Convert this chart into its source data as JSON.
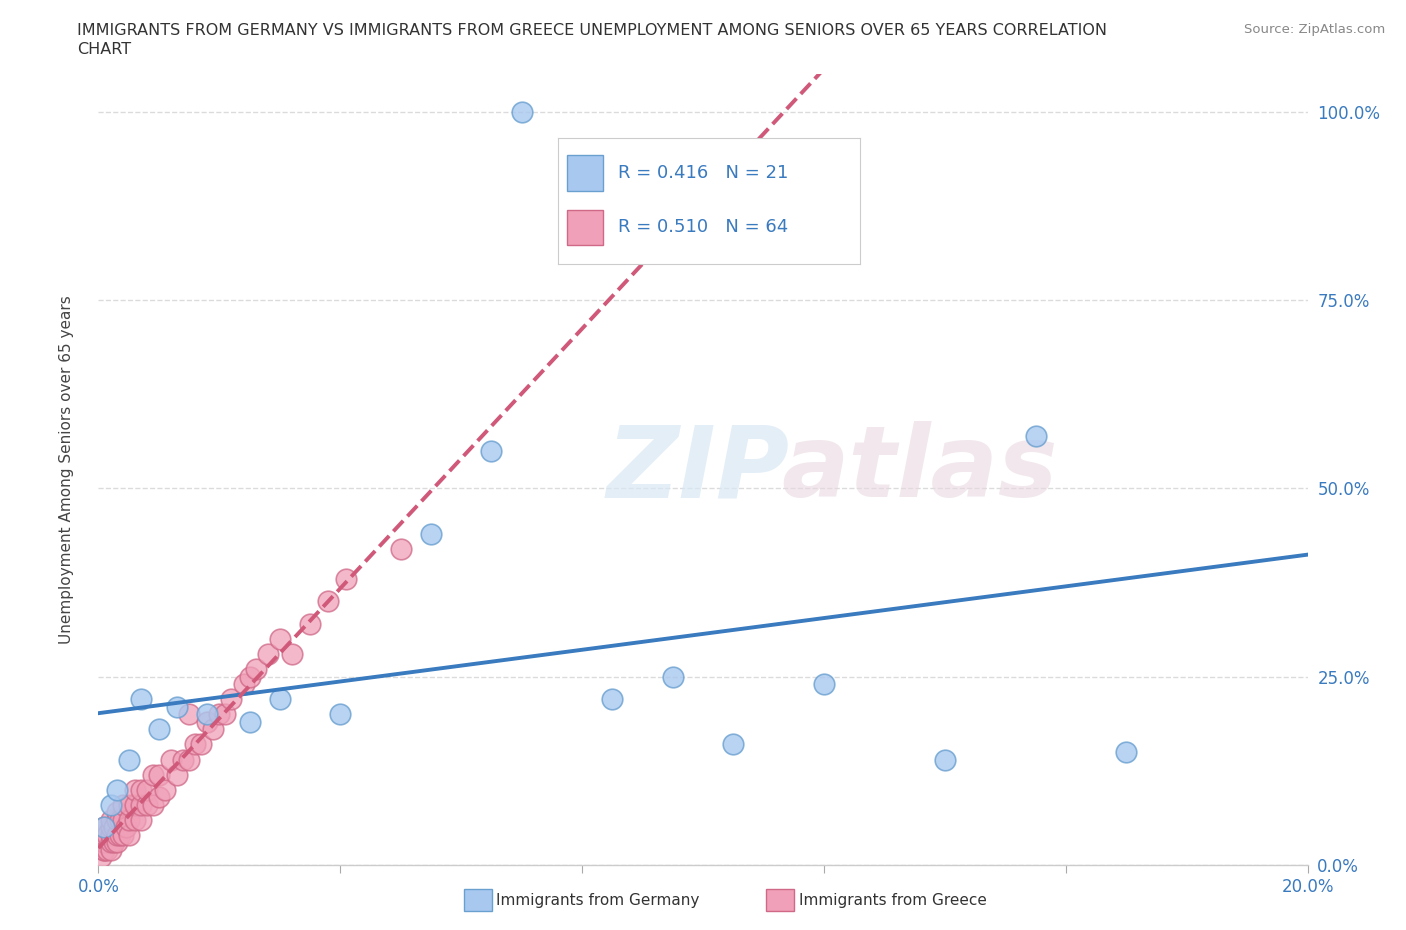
{
  "title_line1": "IMMIGRANTS FROM GERMANY VS IMMIGRANTS FROM GREECE UNEMPLOYMENT AMONG SENIORS OVER 65 YEARS CORRELATION",
  "title_line2": "CHART",
  "source_text": "Source: ZipAtlas.com",
  "ylabel": "Unemployment Among Seniors over 65 years",
  "xlim": [
    0.0,
    0.2
  ],
  "ylim": [
    0.0,
    1.05
  ],
  "xtick_positions": [
    0.0,
    0.04,
    0.08,
    0.12,
    0.16,
    0.2
  ],
  "xtick_labels": [
    "0.0%",
    "",
    "",
    "",
    "",
    "20.0%"
  ],
  "ytick_labels": [
    "0.0%",
    "25.0%",
    "50.0%",
    "75.0%",
    "100.0%"
  ],
  "yticks": [
    0.0,
    0.25,
    0.5,
    0.75,
    1.0
  ],
  "germany_color": "#a8c8f0",
  "greece_color": "#f0a0b8",
  "germany_edge": "#6aa0d0",
  "greece_edge": "#d06888",
  "trend_germany_color": "#3a7abf",
  "trend_greece_color": "#d05878",
  "R_germany": 0.416,
  "N_germany": 21,
  "R_greece": 0.51,
  "N_greece": 64,
  "germany_x": [
    0.001,
    0.002,
    0.003,
    0.005,
    0.007,
    0.01,
    0.013,
    0.018,
    0.025,
    0.03,
    0.04,
    0.055,
    0.065,
    0.07,
    0.085,
    0.095,
    0.105,
    0.12,
    0.14,
    0.155,
    0.17
  ],
  "germany_y": [
    0.05,
    0.08,
    0.1,
    0.14,
    0.22,
    0.18,
    0.21,
    0.2,
    0.19,
    0.22,
    0.2,
    0.44,
    0.55,
    1.0,
    0.22,
    0.25,
    0.16,
    0.24,
    0.14,
    0.57,
    0.15
  ],
  "greece_x": [
    0.0005,
    0.001,
    0.001,
    0.001,
    0.001,
    0.001,
    0.001,
    0.0015,
    0.0015,
    0.002,
    0.002,
    0.002,
    0.002,
    0.002,
    0.0025,
    0.0025,
    0.003,
    0.003,
    0.003,
    0.003,
    0.0035,
    0.0035,
    0.004,
    0.004,
    0.004,
    0.0045,
    0.005,
    0.005,
    0.005,
    0.006,
    0.006,
    0.006,
    0.007,
    0.007,
    0.007,
    0.008,
    0.008,
    0.009,
    0.009,
    0.01,
    0.01,
    0.011,
    0.012,
    0.013,
    0.014,
    0.015,
    0.015,
    0.016,
    0.017,
    0.018,
    0.019,
    0.02,
    0.021,
    0.022,
    0.024,
    0.025,
    0.026,
    0.028,
    0.03,
    0.032,
    0.035,
    0.038,
    0.041,
    0.05
  ],
  "greece_y": [
    0.01,
    0.02,
    0.02,
    0.03,
    0.03,
    0.04,
    0.05,
    0.02,
    0.04,
    0.02,
    0.03,
    0.04,
    0.05,
    0.06,
    0.03,
    0.05,
    0.03,
    0.04,
    0.06,
    0.07,
    0.04,
    0.06,
    0.04,
    0.06,
    0.08,
    0.05,
    0.04,
    0.06,
    0.08,
    0.06,
    0.08,
    0.1,
    0.06,
    0.08,
    0.1,
    0.08,
    0.1,
    0.08,
    0.12,
    0.09,
    0.12,
    0.1,
    0.14,
    0.12,
    0.14,
    0.14,
    0.2,
    0.16,
    0.16,
    0.19,
    0.18,
    0.2,
    0.2,
    0.22,
    0.24,
    0.25,
    0.26,
    0.28,
    0.3,
    0.28,
    0.32,
    0.35,
    0.38,
    0.42
  ],
  "watermark_top": "ZIP",
  "watermark_bot": "atlas",
  "background_color": "#ffffff",
  "grid_color": "#d8d8d8",
  "legend_label_germany": "Immigrants from Germany",
  "legend_label_greece": "Immigrants from Greece"
}
